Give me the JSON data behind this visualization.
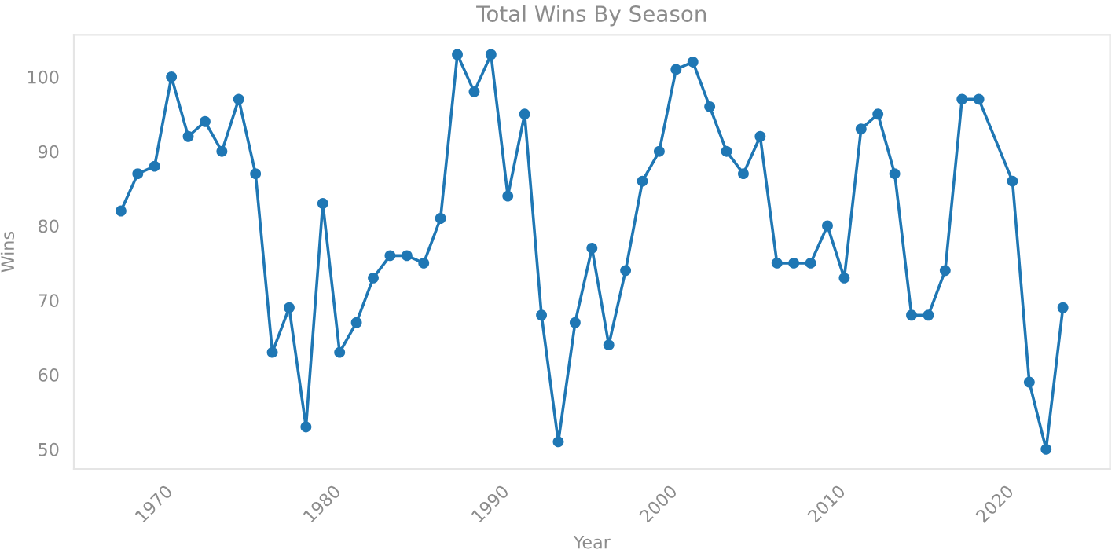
{
  "chart_data": {
    "type": "line",
    "title": "Total Wins By Season",
    "xlabel": "Year",
    "ylabel": "Wins",
    "x": [
      1968,
      1969,
      1970,
      1971,
      1972,
      1973,
      1974,
      1975,
      1976,
      1977,
      1978,
      1979,
      1980,
      1981,
      1982,
      1983,
      1984,
      1985,
      1986,
      1987,
      1988,
      1989,
      1990,
      1991,
      1992,
      1993,
      1994,
      1995,
      1996,
      1997,
      1998,
      1999,
      2000,
      2001,
      2002,
      2003,
      2004,
      2005,
      2006,
      2007,
      2008,
      2009,
      2010,
      2011,
      2012,
      2013,
      2014,
      2015,
      2016,
      2017,
      2018,
      2019,
      2021,
      2022,
      2023,
      2024
    ],
    "series": [
      {
        "color": "#1f77b4",
        "values": [
          82,
          87,
          88,
          100,
          92,
          94,
          90,
          97,
          87,
          63,
          69,
          53,
          83,
          63,
          67,
          73,
          76,
          76,
          75,
          81,
          103,
          98,
          103,
          84,
          95,
          68,
          51,
          67,
          77,
          64,
          74,
          86,
          90,
          101,
          102,
          96,
          90,
          87,
          92,
          75,
          75,
          75,
          80,
          73,
          93,
          95,
          87,
          68,
          68,
          74,
          97,
          97,
          86,
          59,
          50,
          69
        ]
      }
    ],
    "xlim": [
      1965.2,
      2026.8
    ],
    "xticks": [
      1970,
      1980,
      1990,
      2000,
      2010,
      2020
    ],
    "ylim": [
      47.35,
      105.65
    ],
    "yticks": [
      50,
      60,
      70,
      80,
      90,
      100
    ],
    "marker": "circle",
    "line_style": "solid",
    "grid": false
  }
}
